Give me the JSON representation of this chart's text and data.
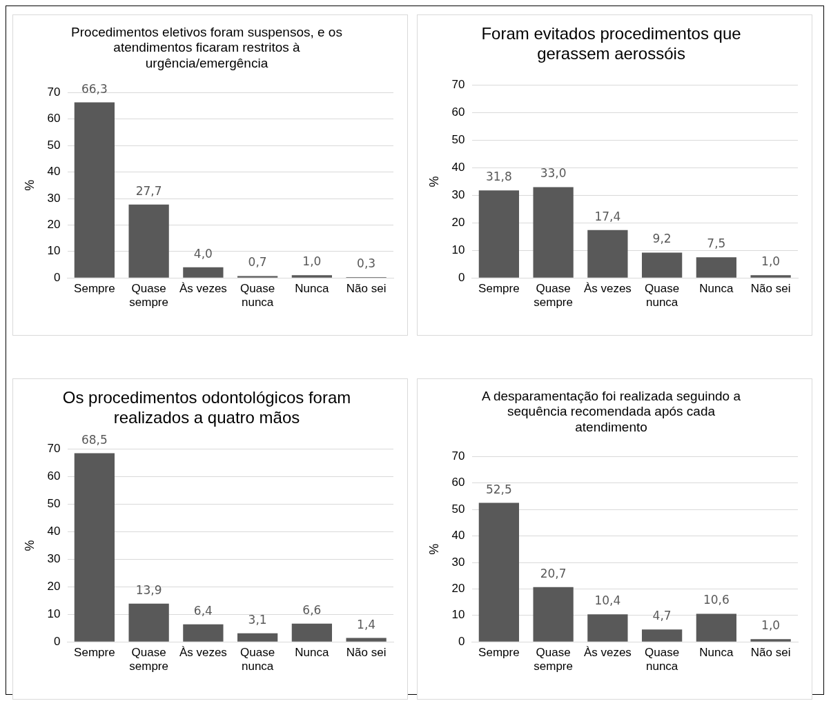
{
  "chart_data": [
    {
      "type": "bar",
      "title": "Procedimentos eletivos foram suspensos, e os atendimentos ficaram restritos à urgência/emergência",
      "ylabel": "%",
      "categories": [
        "Sempre",
        "Quase sempre",
        "Às vezes",
        "Quase nunca",
        "Nunca",
        "Não sei"
      ],
      "values": [
        66.3,
        27.7,
        4.0,
        0.7,
        1.0,
        0.3
      ],
      "value_labels": [
        "66,3",
        "27,7",
        "4,0",
        "0,7",
        "1,0",
        "0,3"
      ],
      "color": "#595959",
      "ylim": [
        0,
        70
      ],
      "yticks": [
        0,
        10,
        20,
        30,
        40,
        50,
        60,
        70
      ],
      "grid": "y",
      "legend": false
    },
    {
      "type": "bar",
      "title": "Foram evitados procedimentos que gerassem aerossóis",
      "ylabel": "%",
      "categories": [
        "Sempre",
        "Quase sempre",
        "Às vezes",
        "Quase nunca",
        "Nunca",
        "Não sei"
      ],
      "values": [
        31.8,
        33.0,
        17.4,
        9.2,
        7.5,
        1.0
      ],
      "value_labels": [
        "31,8",
        "33,0",
        "17,4",
        "9,2",
        "7,5",
        "1,0"
      ],
      "color": "#595959",
      "ylim": [
        0,
        70
      ],
      "yticks": [
        0,
        10,
        20,
        30,
        40,
        50,
        60,
        70
      ],
      "grid": "y",
      "legend": false
    },
    {
      "type": "bar",
      "title": "Os procedimentos odontológicos foram realizados a quatro mãos",
      "ylabel": "%",
      "categories": [
        "Sempre",
        "Quase sempre",
        "Às vezes",
        "Quase nunca",
        "Nunca",
        "Não sei"
      ],
      "values": [
        68.5,
        13.9,
        6.4,
        3.1,
        6.6,
        1.4
      ],
      "value_labels": [
        "68,5",
        "13,9",
        "6,4",
        "3,1",
        "6,6",
        "1,4"
      ],
      "color": "#595959",
      "ylim": [
        0,
        70
      ],
      "yticks": [
        0,
        10,
        20,
        30,
        40,
        50,
        60,
        70
      ],
      "grid": "y",
      "legend": false
    },
    {
      "type": "bar",
      "title": "A desparamentação foi realizada seguindo a sequência recomendada após cada atendimento",
      "ylabel": "%",
      "categories": [
        "Sempre",
        "Quase sempre",
        "Às vezes",
        "Quase nunca",
        "Nunca",
        "Não sei"
      ],
      "values": [
        52.5,
        20.7,
        10.4,
        4.7,
        10.6,
        1.0
      ],
      "value_labels": [
        "52,5",
        "20,7",
        "10,4",
        "4,7",
        "10,6",
        "1,0"
      ],
      "color": "#595959",
      "ylim": [
        0,
        70
      ],
      "yticks": [
        0,
        10,
        20,
        30,
        40,
        50,
        60,
        70
      ],
      "grid": "y",
      "legend": false
    }
  ]
}
